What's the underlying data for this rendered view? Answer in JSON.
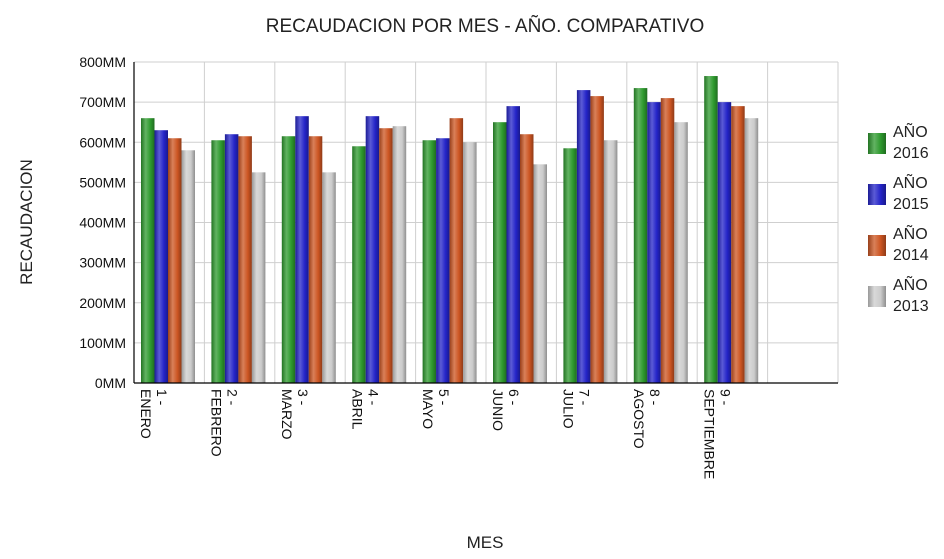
{
  "chart_data": {
    "type": "bar",
    "title": "RECAUDACION POR MES - AÑO. COMPARATIVO",
    "xlabel": "MES",
    "ylabel": "RECAUDACION",
    "ylim": [
      0,
      800
    ],
    "yunit": "MM",
    "yticks": [
      "0MM",
      "100MM",
      "200MM",
      "300MM",
      "400MM",
      "500MM",
      "600MM",
      "700MM",
      "800MM"
    ],
    "grid": true,
    "legend_position": "right",
    "categories": [
      {
        "line1": "1 -",
        "line2": "ENERO"
      },
      {
        "line1": "2 -",
        "line2": "FEBRERO"
      },
      {
        "line1": "3 -",
        "line2": "MARZO"
      },
      {
        "line1": "4 -",
        "line2": "ABRIL"
      },
      {
        "line1": "5 -",
        "line2": "MAYO"
      },
      {
        "line1": "6 -",
        "line2": "JUNIO"
      },
      {
        "line1": "7 -",
        "line2": "JULIO"
      },
      {
        "line1": "8 -",
        "line2": "AGOSTO"
      },
      {
        "line1": "9 -",
        "line2": "SEPTIEMBRE"
      },
      {
        "line1": "",
        "line2": ""
      }
    ],
    "series": [
      {
        "name_line1": "AÑO",
        "name_line2": "2016",
        "color": "#2e9a2e",
        "values": [
          660,
          605,
          615,
          590,
          605,
          650,
          585,
          735,
          765,
          null
        ]
      },
      {
        "name_line1": "AÑO",
        "name_line2": "2015",
        "color": "#2424c8",
        "values": [
          630,
          620,
          665,
          665,
          610,
          690,
          730,
          700,
          700,
          null
        ]
      },
      {
        "name_line1": "AÑO",
        "name_line2": "2014",
        "color": "#cc5522",
        "values": [
          610,
          615,
          615,
          635,
          660,
          620,
          715,
          710,
          690,
          null
        ]
      },
      {
        "name_line1": "AÑO",
        "name_line2": "2013",
        "color": "#cccccc",
        "values": [
          580,
          525,
          525,
          640,
          600,
          545,
          605,
          650,
          660,
          null
        ]
      }
    ]
  }
}
